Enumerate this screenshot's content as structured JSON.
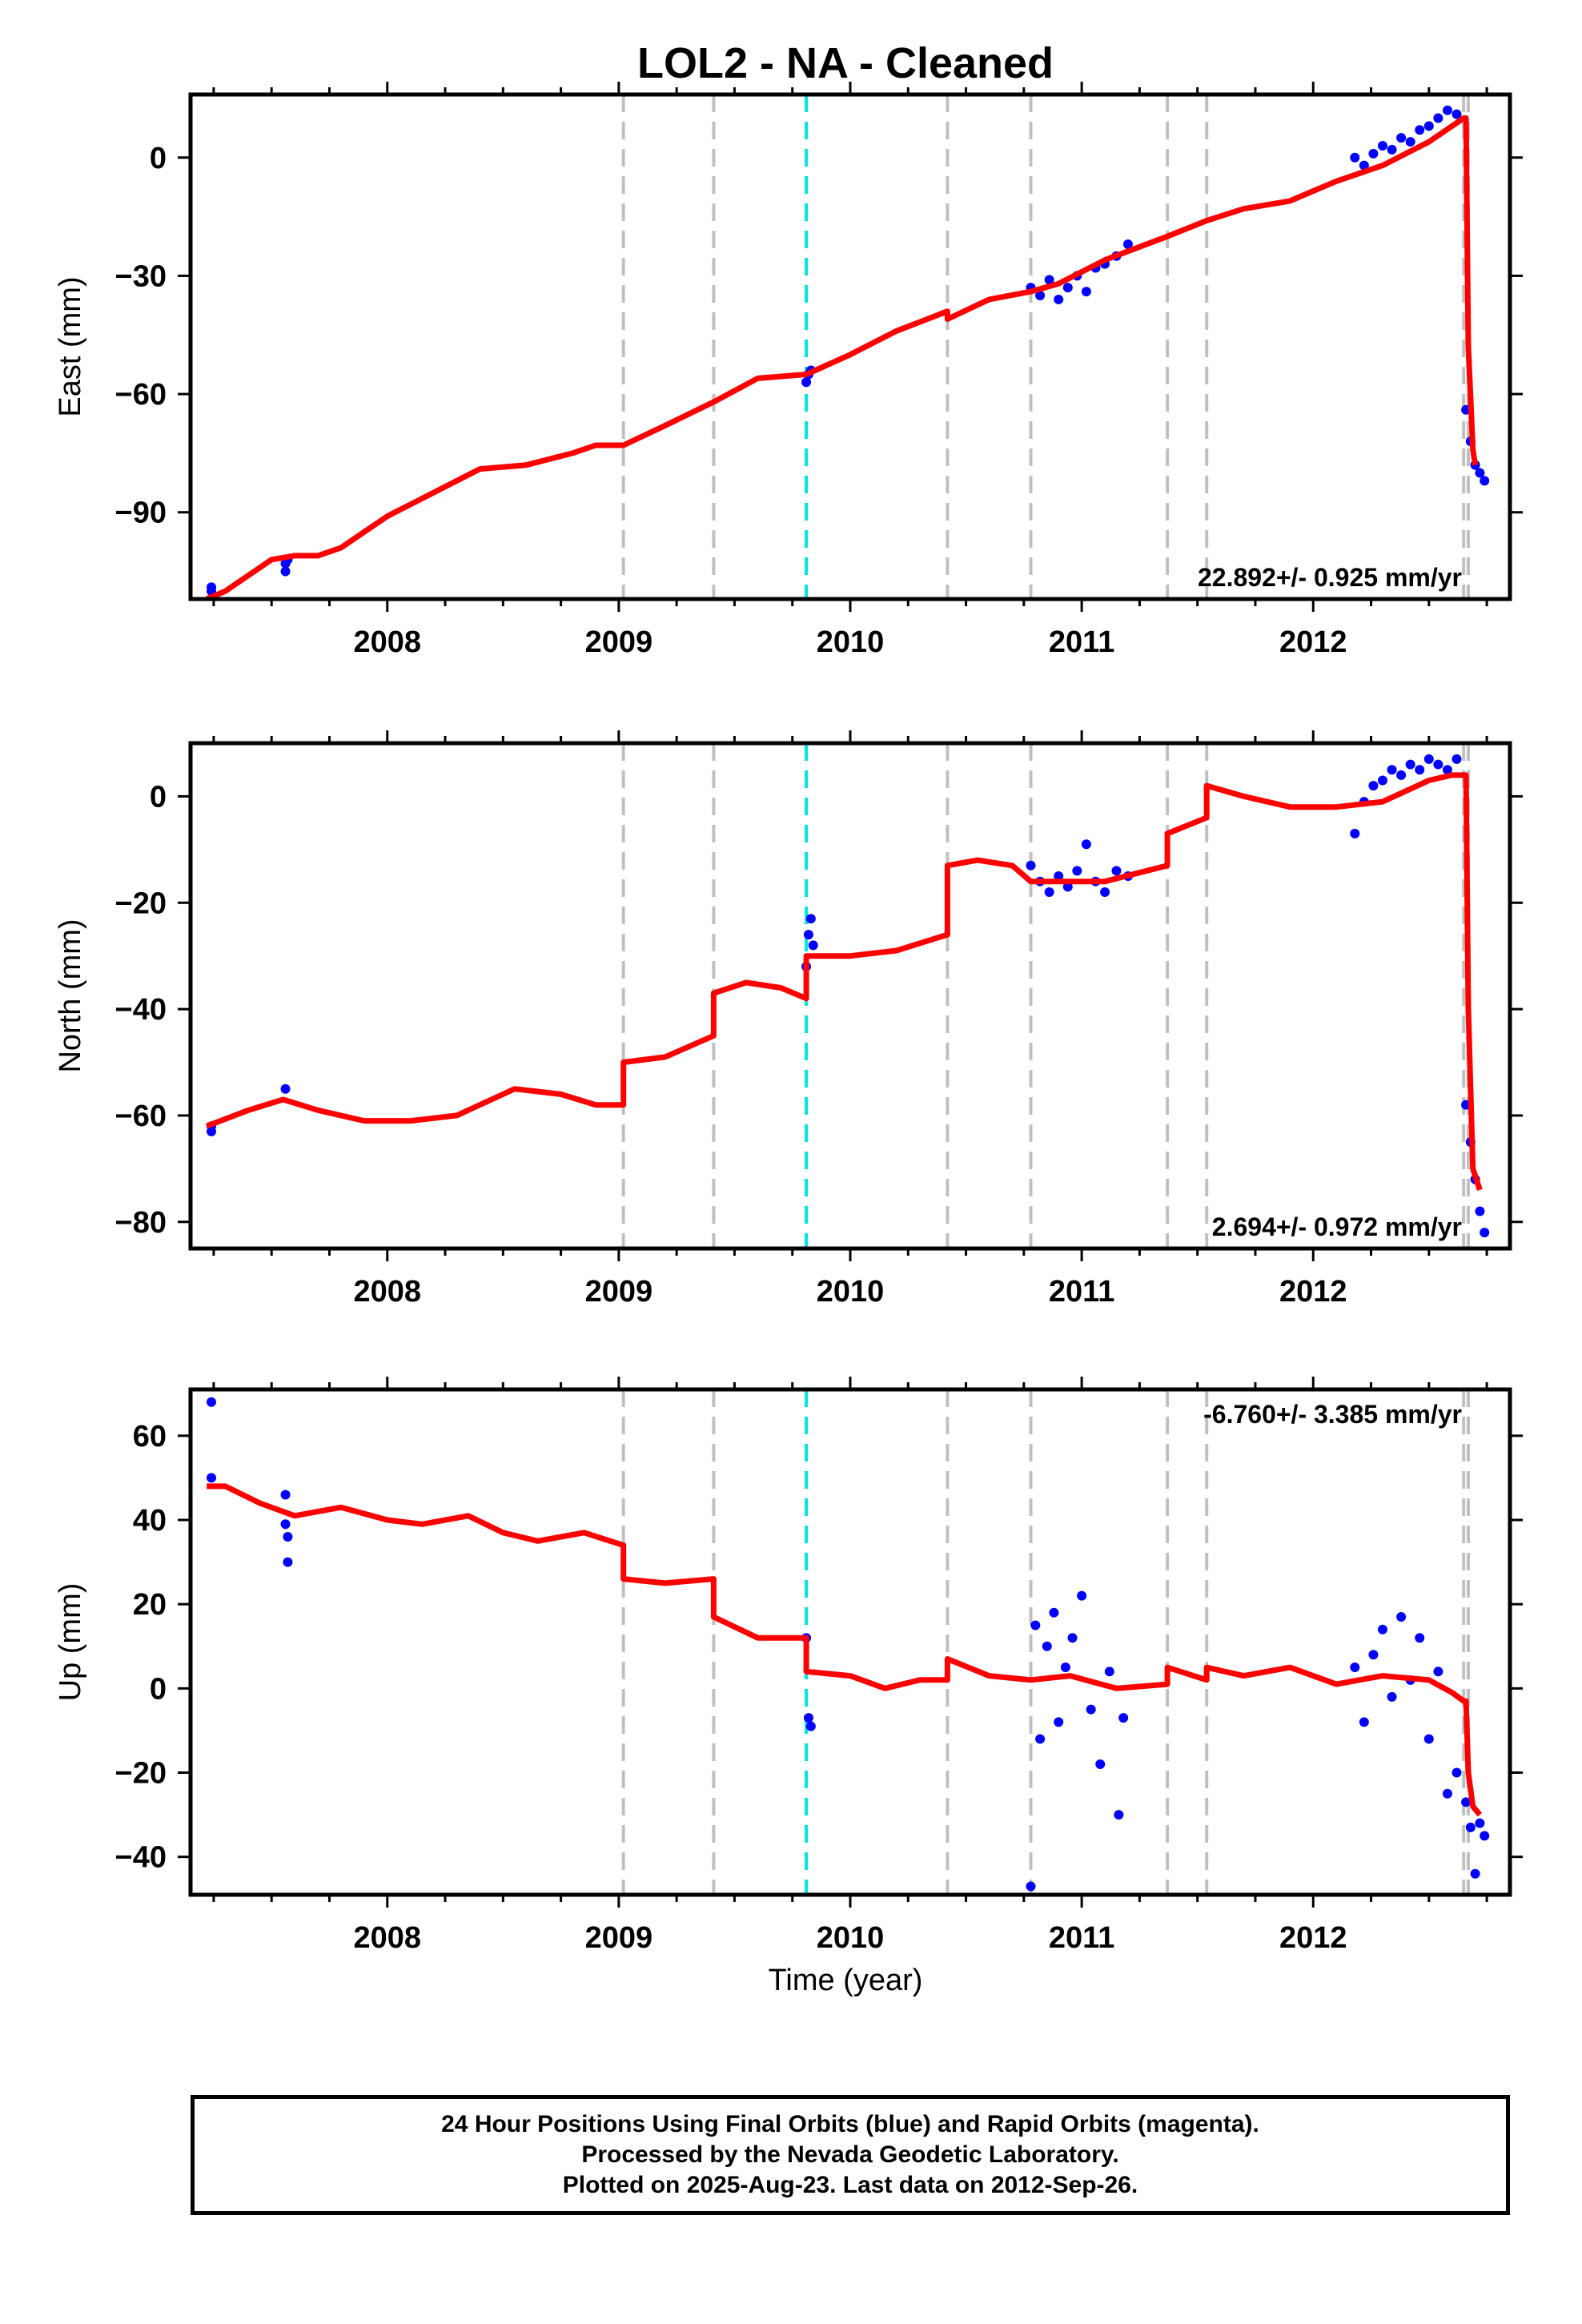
{
  "chart_data": {
    "type": "scatter",
    "title": "LOL2  - NA - Cleaned",
    "xlabel": "Time (year)",
    "xlim": [
      2007.15,
      2012.85
    ],
    "xticks": [
      2008,
      2009,
      2010,
      2011,
      2012
    ],
    "xtick_labels": [
      "2008",
      "2009",
      "2010",
      "2011",
      "2012"
    ],
    "grid": false,
    "steps_gray": [
      2009.02,
      2009.41,
      2010.42,
      2010.78,
      2011.37,
      2011.54,
      2012.65,
      2012.67
    ],
    "steps_cyan": [
      2009.81
    ],
    "colors": {
      "points": "#0000ff",
      "model": "#ff0000",
      "step_gray": "#c0c0c0",
      "step_cyan": "#00e5e5"
    },
    "panels": [
      {
        "name": "east",
        "ylabel": "East (mm)",
        "ylim": [
          -112,
          16
        ],
        "yticks": [
          0,
          -30,
          -60,
          -90
        ],
        "ytick_labels": [
          "0",
          "−30",
          "−60",
          "−90"
        ],
        "rate_label": "22.892+/- 0.925 mm/yr",
        "rate_position": "bottom-right",
        "model": {
          "x": [
            2007.22,
            2007.3,
            2007.4,
            2007.5,
            2007.6,
            2007.7,
            2007.8,
            2007.9,
            2008.0,
            2008.2,
            2008.4,
            2008.6,
            2008.8,
            2008.9,
            2009.02,
            2009.02,
            2009.2,
            2009.41,
            2009.41,
            2009.6,
            2009.81,
            2009.81,
            2010.0,
            2010.2,
            2010.42,
            2010.42,
            2010.6,
            2010.78,
            2010.78,
            2010.9,
            2011.1,
            2011.37,
            2011.37,
            2011.54,
            2011.54,
            2011.7,
            2011.9,
            2012.1,
            2012.3,
            2012.5,
            2012.6,
            2012.65,
            2012.66,
            2012.67,
            2012.69,
            2012.7
          ],
          "y": [
            -112,
            -110,
            -106,
            -102,
            -101,
            -101,
            -99,
            -95,
            -91,
            -85,
            -79,
            -78,
            -75,
            -73,
            -73,
            -73,
            -68,
            -62,
            -62,
            -56,
            -55,
            -55,
            -50,
            -44,
            -39,
            -41,
            -36,
            -34,
            -34,
            -32,
            -26,
            -20,
            -20,
            -16,
            -16,
            -13,
            -11,
            -6,
            -2,
            4,
            8,
            10,
            10,
            -48,
            -74,
            -78
          ]
        },
        "points": {
          "x": [
            2007.24,
            2007.24,
            2007.56,
            2007.56,
            2007.57,
            2009.81,
            2009.82,
            2009.83,
            2010.78,
            2010.82,
            2010.86,
            2010.9,
            2010.94,
            2010.98,
            2011.02,
            2011.06,
            2011.1,
            2011.15,
            2011.2,
            2012.18,
            2012.22,
            2012.26,
            2012.3,
            2012.34,
            2012.38,
            2012.42,
            2012.46,
            2012.5,
            2012.54,
            2012.58,
            2012.62,
            2012.66,
            2012.68,
            2012.7,
            2012.72,
            2012.74
          ],
          "y": [
            -110,
            -109,
            -105,
            -103,
            -102,
            -57,
            -55,
            -54,
            -33,
            -35,
            -31,
            -36,
            -33,
            -30,
            -34,
            -28,
            -27,
            -25,
            -22,
            0,
            -2,
            1,
            3,
            2,
            5,
            4,
            7,
            8,
            10,
            12,
            11,
            -64,
            -72,
            -78,
            -80,
            -82
          ]
        }
      },
      {
        "name": "north",
        "ylabel": "North (mm)",
        "ylim": [
          -85,
          10
        ],
        "yticks": [
          0,
          -20,
          -40,
          -60,
          -80
        ],
        "ytick_labels": [
          "0",
          "−20",
          "−40",
          "−60",
          "−80"
        ],
        "rate_label": "2.694+/- 0.972 mm/yr",
        "rate_position": "bottom-right",
        "model": {
          "x": [
            2007.22,
            2007.4,
            2007.55,
            2007.7,
            2007.9,
            2008.1,
            2008.3,
            2008.55,
            2008.75,
            2008.9,
            2009.02,
            2009.02,
            2009.2,
            2009.41,
            2009.41,
            2009.55,
            2009.7,
            2009.81,
            2009.81,
            2010.0,
            2010.2,
            2010.42,
            2010.42,
            2010.55,
            2010.7,
            2010.78,
            2010.78,
            2010.9,
            2011.1,
            2011.37,
            2011.37,
            2011.54,
            2011.54,
            2011.7,
            2011.9,
            2012.1,
            2012.3,
            2012.5,
            2012.6,
            2012.65,
            2012.66,
            2012.67,
            2012.69,
            2012.72
          ],
          "y": [
            -62,
            -59,
            -57,
            -59,
            -61,
            -61,
            -60,
            -55,
            -56,
            -58,
            -58,
            -50,
            -49,
            -45,
            -37,
            -35,
            -36,
            -38,
            -30,
            -30,
            -29,
            -26,
            -13,
            -12,
            -13,
            -16,
            -16,
            -16,
            -16,
            -13,
            -7,
            -4,
            2,
            0,
            -2,
            -2,
            -1,
            3,
            4,
            4,
            4,
            -40,
            -70,
            -74
          ]
        },
        "points": {
          "x": [
            2007.24,
            2007.24,
            2007.56,
            2009.81,
            2009.82,
            2009.83,
            2009.84,
            2010.78,
            2010.82,
            2010.86,
            2010.9,
            2010.94,
            2010.98,
            2011.02,
            2011.06,
            2011.1,
            2011.15,
            2011.2,
            2012.18,
            2012.22,
            2012.26,
            2012.3,
            2012.34,
            2012.38,
            2012.42,
            2012.46,
            2012.5,
            2012.54,
            2012.58,
            2012.62,
            2012.66,
            2012.68,
            2012.7,
            2012.72,
            2012.74
          ],
          "y": [
            -63,
            -62,
            -55,
            -32,
            -26,
            -23,
            -28,
            -13,
            -16,
            -18,
            -15,
            -17,
            -14,
            -9,
            -16,
            -18,
            -14,
            -15,
            -7,
            -1,
            2,
            3,
            5,
            4,
            6,
            5,
            7,
            6,
            5,
            7,
            -58,
            -65,
            -72,
            -78,
            -82
          ]
        }
      },
      {
        "name": "up",
        "ylabel": "Up (mm)",
        "ylim": [
          -49,
          71
        ],
        "yticks": [
          60,
          40,
          20,
          0,
          -20,
          -40
        ],
        "ytick_labels": [
          "60",
          "40",
          "20",
          "0",
          "−20",
          "−40"
        ],
        "rate_label": "-6.760+/- 3.385 mm/yr",
        "rate_position": "top-right",
        "model": {
          "x": [
            2007.22,
            2007.3,
            2007.45,
            2007.6,
            2007.8,
            2008.0,
            2008.15,
            2008.35,
            2008.5,
            2008.65,
            2008.85,
            2009.02,
            2009.02,
            2009.2,
            2009.41,
            2009.41,
            2009.6,
            2009.81,
            2009.81,
            2010.0,
            2010.15,
            2010.3,
            2010.42,
            2010.42,
            2010.6,
            2010.78,
            2010.78,
            2010.95,
            2011.15,
            2011.37,
            2011.37,
            2011.54,
            2011.54,
            2011.7,
            2011.9,
            2012.1,
            2012.3,
            2012.5,
            2012.6,
            2012.65,
            2012.66,
            2012.67,
            2012.69,
            2012.72
          ],
          "y": [
            48,
            48,
            44,
            41,
            43,
            40,
            39,
            41,
            37,
            35,
            37,
            34,
            26,
            25,
            26,
            17,
            12,
            12,
            4,
            3,
            0,
            2,
            2,
            7,
            3,
            2,
            2,
            3,
            0,
            1,
            5,
            2,
            5,
            3,
            5,
            1,
            3,
            2,
            -1,
            -3,
            -3,
            -20,
            -28,
            -30
          ]
        },
        "points": {
          "x": [
            2007.24,
            2007.24,
            2007.56,
            2007.56,
            2007.57,
            2007.57,
            2009.81,
            2009.82,
            2009.83,
            2010.78,
            2010.8,
            2010.82,
            2010.85,
            2010.88,
            2010.9,
            2010.93,
            2010.96,
            2011.0,
            2011.04,
            2011.08,
            2011.12,
            2011.16,
            2011.18,
            2012.18,
            2012.22,
            2012.26,
            2012.3,
            2012.34,
            2012.38,
            2012.42,
            2012.46,
            2012.5,
            2012.54,
            2012.58,
            2012.62,
            2012.66,
            2012.68,
            2012.7,
            2012.72,
            2012.74
          ],
          "y": [
            68,
            50,
            46,
            39,
            36,
            30,
            12,
            -7,
            -9,
            -47,
            15,
            -12,
            10,
            18,
            -8,
            5,
            12,
            22,
            -5,
            -18,
            4,
            -30,
            -7,
            5,
            -8,
            8,
            14,
            -2,
            17,
            2,
            12,
            -12,
            4,
            -25,
            -20,
            -27,
            -33,
            -44,
            -32,
            -35
          ]
        }
      }
    ]
  },
  "footer": {
    "line1": "24 Hour Positions Using Final Orbits (blue) and Rapid Orbits (magenta).",
    "line2": "Processed by the Nevada Geodetic Laboratory.",
    "line3": "Plotted on 2025-Aug-23. Last data on 2012-Sep-26."
  }
}
